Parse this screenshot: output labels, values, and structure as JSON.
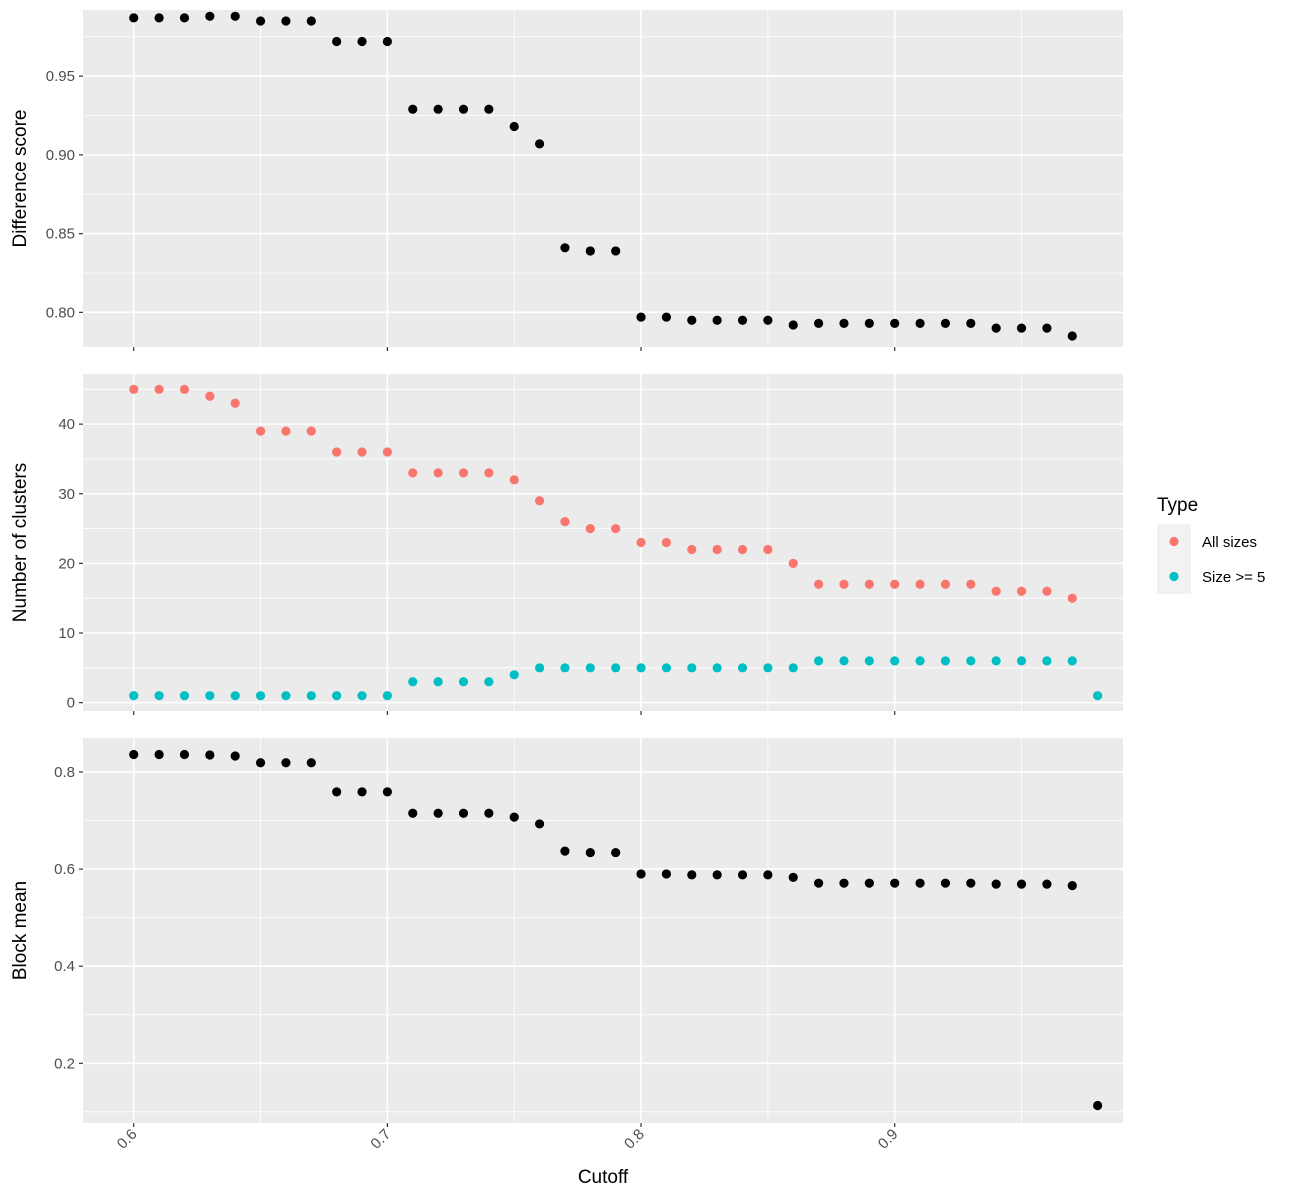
{
  "chart_data": {
    "type": "scatter",
    "xlabel": "Cutoff",
    "x_ticks": [
      0.6,
      0.7,
      0.8,
      0.9
    ],
    "x_tick_labels": [
      "0.6",
      "0.7",
      "0.8",
      "0.9"
    ],
    "xlim": [
      0.58,
      0.99
    ],
    "grid": true,
    "legend": {
      "title": "Type",
      "placement": "right",
      "entries": [
        {
          "label": "All sizes",
          "color": "#F8766D"
        },
        {
          "label": "Size >= 5",
          "color": "#00BFC4"
        }
      ]
    },
    "panels": [
      {
        "ylabel": "Difference score",
        "ylim": [
          0.778,
          0.992
        ],
        "y_ticks": [
          0.8,
          0.85,
          0.9,
          0.95
        ],
        "y_tick_labels": [
          "0.80",
          "0.85",
          "0.90",
          "0.95"
        ],
        "y_minor": [
          0.825,
          0.875,
          0.925,
          0.975
        ],
        "series": [
          {
            "color": "#000000",
            "x": [
              0.6,
              0.61,
              0.62,
              0.63,
              0.64,
              0.65,
              0.66,
              0.67,
              0.68,
              0.69,
              0.7,
              0.71,
              0.72,
              0.73,
              0.74,
              0.75,
              0.76,
              0.77,
              0.78,
              0.79,
              0.8,
              0.81,
              0.82,
              0.83,
              0.84,
              0.85,
              0.86,
              0.87,
              0.88,
              0.89,
              0.9,
              0.91,
              0.92,
              0.93,
              0.94,
              0.95,
              0.96,
              0.97
            ],
            "y": [
              0.987,
              0.987,
              0.987,
              0.988,
              0.988,
              0.985,
              0.985,
              0.985,
              0.972,
              0.972,
              0.972,
              0.929,
              0.929,
              0.929,
              0.929,
              0.918,
              0.907,
              0.841,
              0.839,
              0.839,
              0.797,
              0.797,
              0.795,
              0.795,
              0.795,
              0.795,
              0.792,
              0.793,
              0.793,
              0.793,
              0.793,
              0.793,
              0.793,
              0.793,
              0.79,
              0.79,
              0.79,
              0.785
            ]
          }
        ]
      },
      {
        "ylabel": "Number of clusters",
        "ylim": [
          -1.2,
          47.2
        ],
        "y_ticks": [
          0,
          10,
          20,
          30,
          40
        ],
        "y_tick_labels": [
          "0",
          "10",
          "20",
          "30",
          "40"
        ],
        "y_minor": [
          5,
          15,
          25,
          35,
          45
        ],
        "series": [
          {
            "name": "All sizes",
            "color": "#F8766D",
            "x": [
              0.6,
              0.61,
              0.62,
              0.63,
              0.64,
              0.65,
              0.66,
              0.67,
              0.68,
              0.69,
              0.7,
              0.71,
              0.72,
              0.73,
              0.74,
              0.75,
              0.76,
              0.77,
              0.78,
              0.79,
              0.8,
              0.81,
              0.82,
              0.83,
              0.84,
              0.85,
              0.86,
              0.87,
              0.88,
              0.89,
              0.9,
              0.91,
              0.92,
              0.93,
              0.94,
              0.95,
              0.96,
              0.97
            ],
            "y": [
              45,
              45,
              45,
              44,
              43,
              39,
              39,
              39,
              36,
              36,
              36,
              33,
              33,
              33,
              33,
              32,
              29,
              26,
              25,
              25,
              23,
              23,
              22,
              22,
              22,
              22,
              20,
              17,
              17,
              17,
              17,
              17,
              17,
              17,
              16,
              16,
              16,
              15
            ]
          },
          {
            "name": "Size >= 5",
            "color": "#00BFC4",
            "x": [
              0.6,
              0.61,
              0.62,
              0.63,
              0.64,
              0.65,
              0.66,
              0.67,
              0.68,
              0.69,
              0.7,
              0.71,
              0.72,
              0.73,
              0.74,
              0.75,
              0.76,
              0.77,
              0.78,
              0.79,
              0.8,
              0.81,
              0.82,
              0.83,
              0.84,
              0.85,
              0.86,
              0.87,
              0.88,
              0.89,
              0.9,
              0.91,
              0.92,
              0.93,
              0.94,
              0.95,
              0.96,
              0.97,
              0.98
            ],
            "y": [
              1,
              1,
              1,
              1,
              1,
              1,
              1,
              1,
              1,
              1,
              1,
              3,
              3,
              3,
              3,
              4,
              5,
              5,
              5,
              5,
              5,
              5,
              5,
              5,
              5,
              5,
              5,
              6,
              6,
              6,
              6,
              6,
              6,
              6,
              6,
              6,
              6,
              6,
              1
            ]
          }
        ]
      },
      {
        "ylabel": "Block mean",
        "ylim": [
          0.077,
          0.87
        ],
        "y_ticks": [
          0.2,
          0.4,
          0.6,
          0.8
        ],
        "y_tick_labels": [
          "0.2",
          "0.4",
          "0.6",
          "0.8"
        ],
        "y_minor": [
          0.1,
          0.3,
          0.5,
          0.7
        ],
        "series": [
          {
            "color": "#000000",
            "x": [
              0.6,
              0.61,
              0.62,
              0.63,
              0.64,
              0.65,
              0.66,
              0.67,
              0.68,
              0.69,
              0.7,
              0.71,
              0.72,
              0.73,
              0.74,
              0.75,
              0.76,
              0.77,
              0.78,
              0.79,
              0.8,
              0.81,
              0.82,
              0.83,
              0.84,
              0.85,
              0.86,
              0.87,
              0.88,
              0.89,
              0.9,
              0.91,
              0.92,
              0.93,
              0.94,
              0.95,
              0.96,
              0.97,
              0.98
            ],
            "y": [
              0.836,
              0.836,
              0.836,
              0.835,
              0.833,
              0.819,
              0.819,
              0.819,
              0.759,
              0.759,
              0.759,
              0.715,
              0.715,
              0.715,
              0.715,
              0.707,
              0.693,
              0.637,
              0.634,
              0.634,
              0.59,
              0.59,
              0.588,
              0.588,
              0.588,
              0.588,
              0.583,
              0.571,
              0.571,
              0.571,
              0.571,
              0.571,
              0.571,
              0.571,
              0.569,
              0.569,
              0.569,
              0.566,
              0.113
            ]
          }
        ]
      }
    ]
  }
}
